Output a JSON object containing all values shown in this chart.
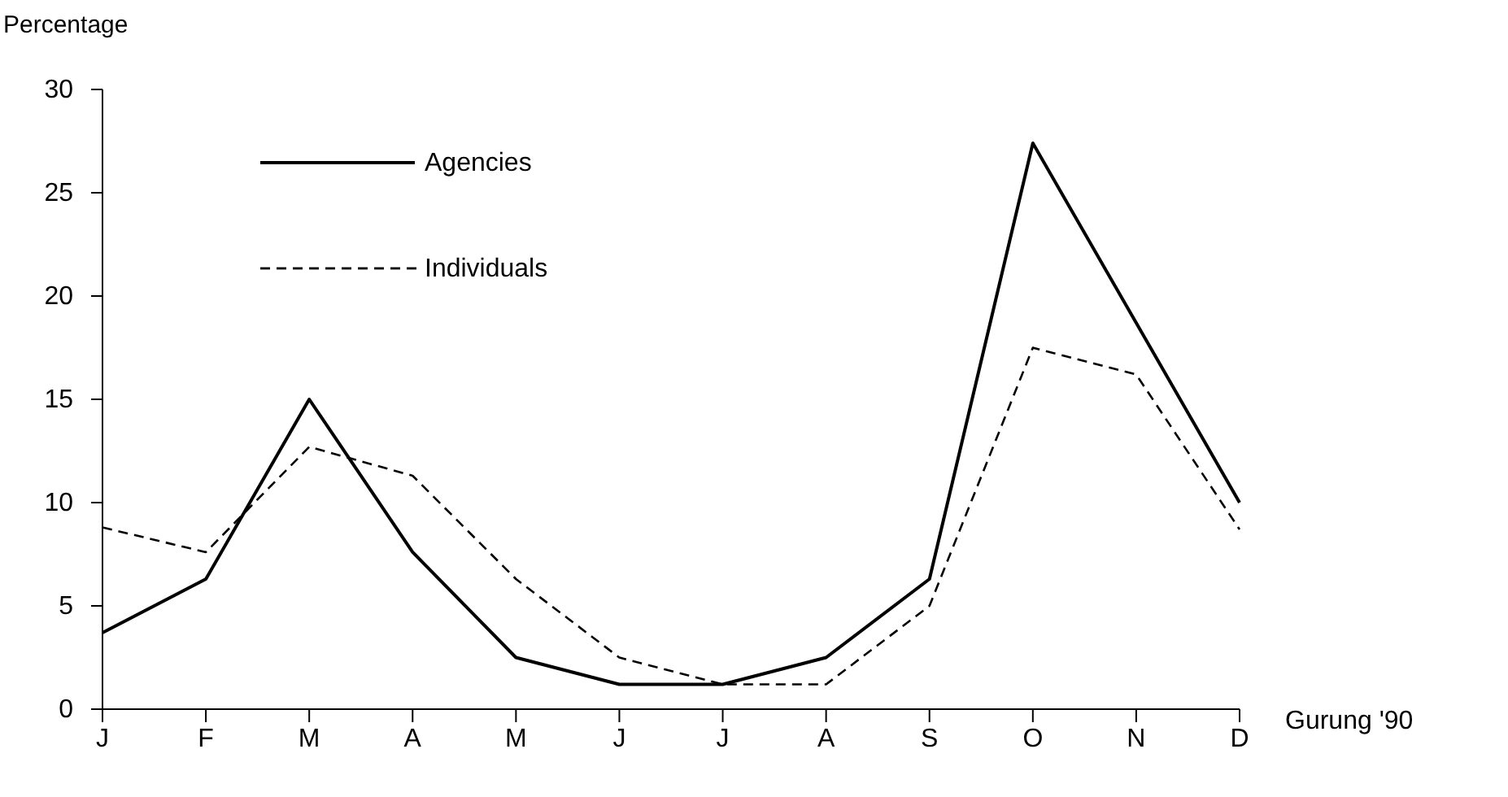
{
  "chart_data": {
    "type": "line",
    "ylabel": "Percentage",
    "categories": [
      "J",
      "F",
      "M",
      "A",
      "M",
      "J",
      "J",
      "A",
      "S",
      "O",
      "N",
      "D"
    ],
    "series": [
      {
        "name": "Agencies",
        "color": "#000000",
        "line_style": "solid",
        "values": [
          3.7,
          6.3,
          15,
          7.6,
          2.5,
          1.2,
          1.2,
          2.5,
          6.3,
          27.4,
          18.7,
          10
        ]
      },
      {
        "name": "Individuals",
        "color": "#000000",
        "line_style": "dashed",
        "values": [
          8.8,
          7.6,
          12.7,
          11.3,
          6.3,
          2.5,
          1.2,
          1.2,
          5,
          17.5,
          16.2,
          8.7
        ]
      }
    ],
    "ylim": [
      0,
      30
    ],
    "yticks": [
      0,
      5,
      10,
      15,
      20,
      25,
      30
    ],
    "grid": false,
    "legend": "top left",
    "marker": "none",
    "annotations": [
      "Gurung '90"
    ]
  }
}
